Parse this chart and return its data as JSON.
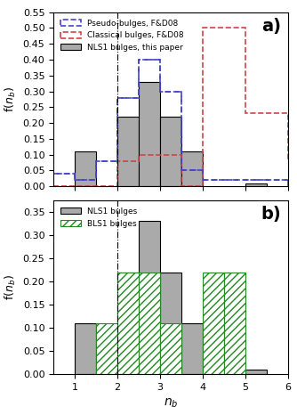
{
  "title_a": "a)",
  "title_b": "b)",
  "xlabel": "$n_b$",
  "ylabel_a": "f($n_b$)",
  "ylabel_b": "f($n_b$)",
  "vline_x": 2.0,
  "nls1_bins": [
    0.5,
    1.0,
    1.5,
    2.0,
    2.5,
    3.0,
    3.5,
    4.0,
    4.5,
    5.0,
    5.5,
    6.0
  ],
  "nls1_vals": [
    0.0,
    0.11,
    0.0,
    0.22,
    0.33,
    0.22,
    0.11,
    0.0,
    0.0,
    0.01,
    0.0,
    0.0
  ],
  "pseudo_bins": [
    0.5,
    1.0,
    1.5,
    2.0,
    2.5,
    3.0,
    3.5,
    4.0,
    4.5,
    5.0,
    5.5,
    6.0
  ],
  "pseudo_vals": [
    0.04,
    0.02,
    0.08,
    0.28,
    0.4,
    0.3,
    0.05,
    0.02,
    0.02,
    0.02,
    0.02,
    0.0
  ],
  "classical_bins": [
    0.5,
    1.0,
    1.5,
    2.0,
    2.5,
    3.0,
    3.5,
    4.0,
    4.5,
    5.0,
    5.5,
    6.0
  ],
  "classical_vals": [
    0.0,
    0.0,
    0.0,
    0.08,
    0.1,
    0.1,
    0.0,
    0.5,
    0.5,
    0.23,
    0.23,
    0.08
  ],
  "bls1_bins": [
    0.5,
    1.0,
    1.5,
    2.0,
    2.5,
    3.0,
    3.5,
    4.0,
    4.5,
    5.0,
    5.5,
    6.0
  ],
  "bls1_vals": [
    0.0,
    0.0,
    0.11,
    0.22,
    0.22,
    0.11,
    0.0,
    0.22,
    0.22,
    0.0,
    0.0,
    0.0
  ],
  "nls1_color": "#aaaaaa",
  "nls1_edge": "#000000",
  "pseudo_color": "#4444cc",
  "classical_color": "#cc4444",
  "bls1_color": "#228822",
  "xlim": [
    0.5,
    6.0
  ],
  "ylim_a": [
    0.0,
    0.55
  ],
  "ylim_b": [
    0.0,
    0.375
  ],
  "yticks_a": [
    0.0,
    0.05,
    0.1,
    0.15,
    0.2,
    0.25,
    0.3,
    0.35,
    0.4,
    0.45,
    0.5,
    0.55
  ],
  "yticks_b": [
    0.0,
    0.05,
    0.1,
    0.15,
    0.2,
    0.25,
    0.3,
    0.35
  ],
  "xticks": [
    1,
    2,
    3,
    4,
    5,
    6
  ]
}
